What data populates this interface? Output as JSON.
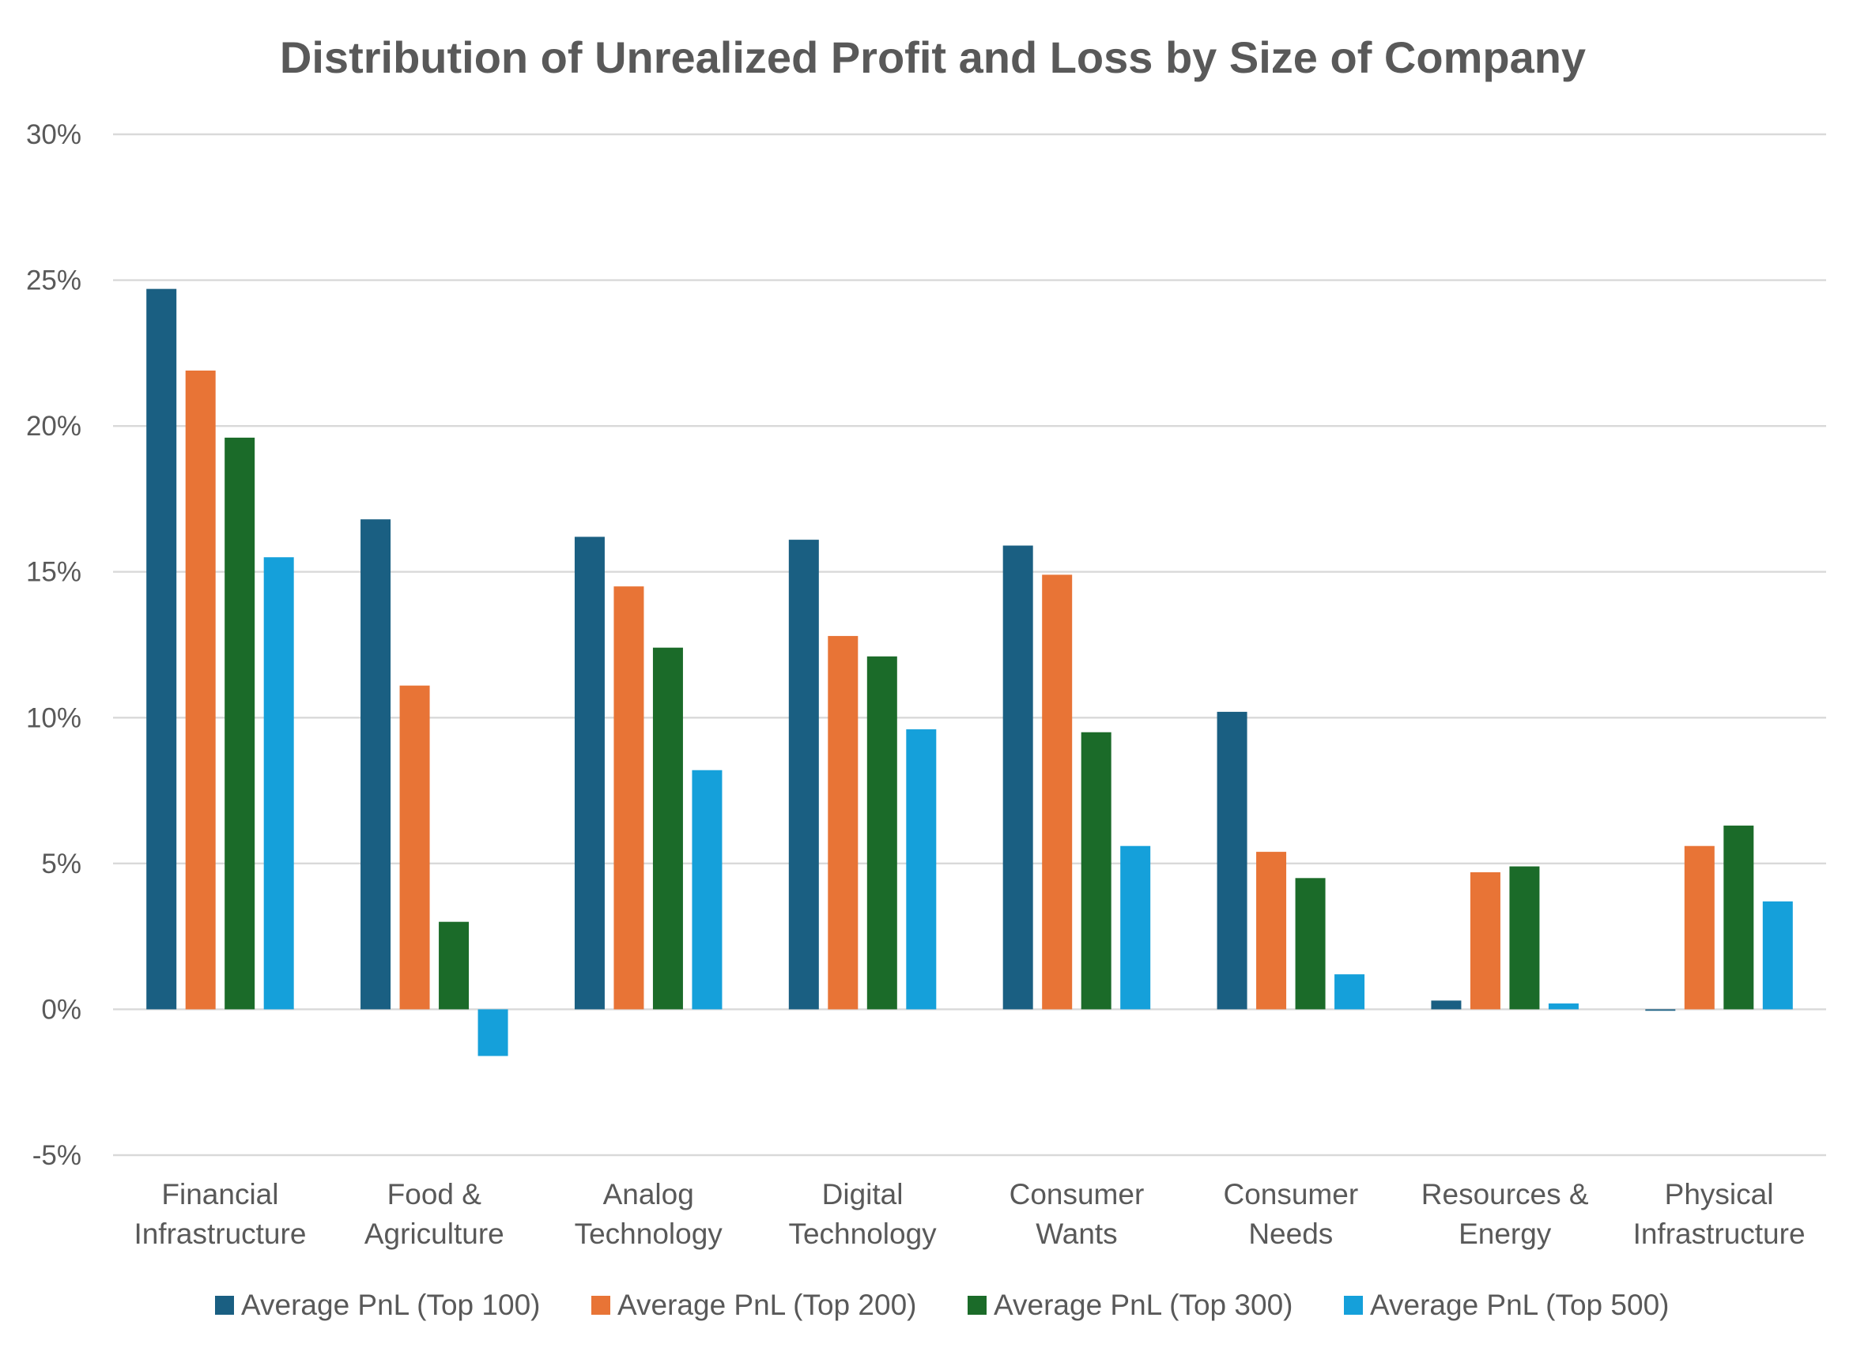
{
  "chart_data": {
    "type": "bar",
    "title": "Distribution of Unrealized Profit and Loss by Size of Company",
    "xlabel": "",
    "ylabel": "",
    "ylim": [
      -5,
      30
    ],
    "yticks": [
      "-5%",
      "0%",
      "5%",
      "10%",
      "15%",
      "20%",
      "25%",
      "30%"
    ],
    "ytick_values": [
      -5,
      0,
      5,
      10,
      15,
      20,
      25,
      30
    ],
    "grid": true,
    "legend_position": "bottom",
    "categories": [
      [
        "Financial",
        "Infrastructure"
      ],
      [
        "Food &",
        "Agriculture"
      ],
      [
        "Analog",
        "Technology"
      ],
      [
        "Digital",
        "Technology"
      ],
      [
        "Consumer",
        "Wants"
      ],
      [
        "Consumer",
        "Needs"
      ],
      [
        "Resources &",
        "Energy"
      ],
      [
        "Physical",
        "Infrastructure"
      ]
    ],
    "series": [
      {
        "name": "Average PnL (Top 100)",
        "color": "#1a5f82",
        "values": [
          24.7,
          16.8,
          16.2,
          16.1,
          15.9,
          10.2,
          0.3,
          -0.05
        ]
      },
      {
        "name": "Average PnL (Top 200)",
        "color": "#e87436",
        "values": [
          21.9,
          11.1,
          14.5,
          12.8,
          14.9,
          5.4,
          4.7,
          5.6
        ]
      },
      {
        "name": "Average PnL (Top 300)",
        "color": "#1b6b29",
        "values": [
          19.6,
          3.0,
          12.4,
          12.1,
          9.5,
          4.5,
          4.9,
          6.3
        ]
      },
      {
        "name": "Average PnL (Top 500)",
        "color": "#15a0da",
        "values": [
          15.5,
          -1.6,
          8.2,
          9.6,
          5.6,
          1.2,
          0.2,
          3.7
        ]
      }
    ]
  }
}
